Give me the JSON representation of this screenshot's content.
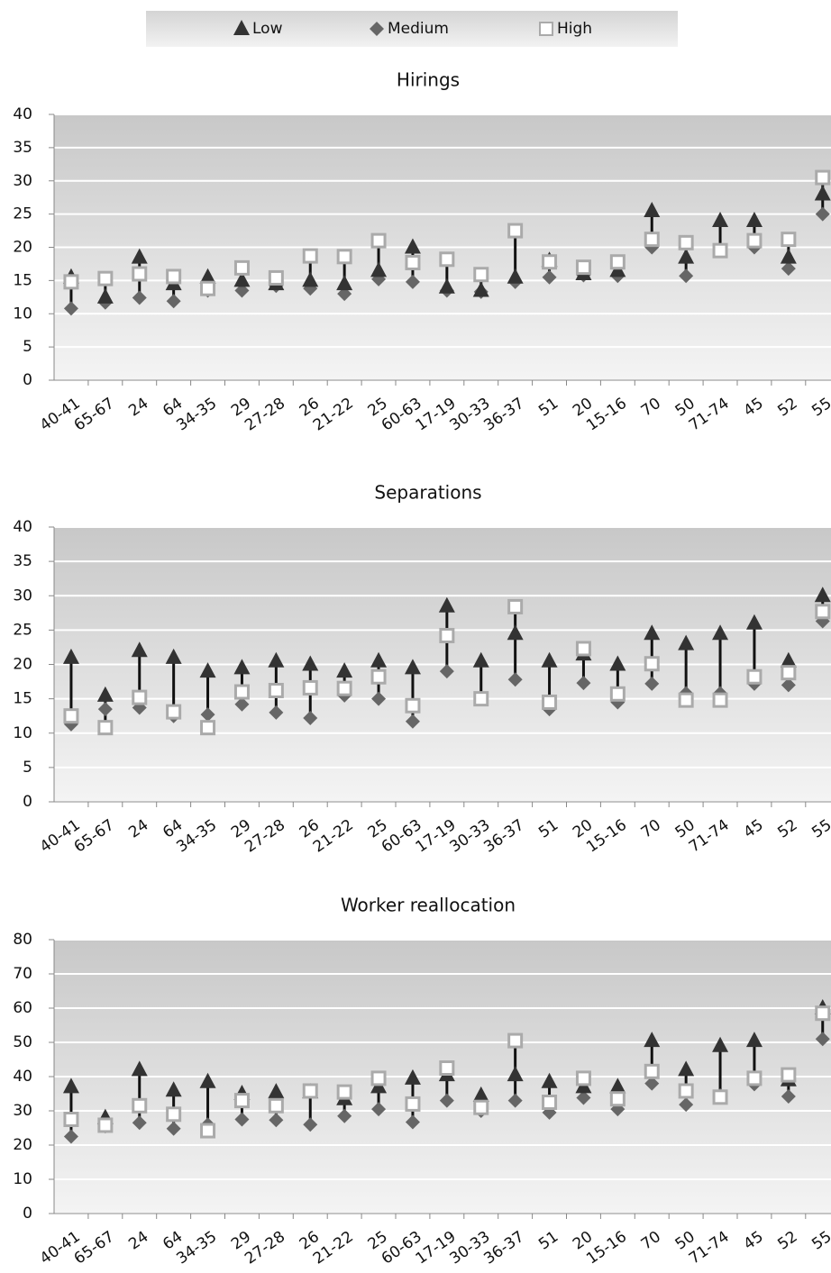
{
  "chart_data": [
    {
      "type": "range",
      "title": "Hirings",
      "categories": [
        "40-41",
        "65-67",
        "24",
        "64",
        "34-35",
        "29",
        "27-28",
        "26",
        "21-22",
        "25",
        "60-63",
        "17-19",
        "30-33",
        "36-37",
        "51",
        "20",
        "15-16",
        "70",
        "50",
        "71-74",
        "45",
        "52",
        "55"
      ],
      "series": [
        {
          "name": "Low",
          "color": "#333333",
          "marker": "triangle",
          "values": [
            15.5,
            12.5,
            18.5,
            14.5,
            15.5,
            15,
            14.5,
            15,
            14.5,
            16.5,
            20,
            14,
            13.5,
            15.5,
            18,
            16,
            16.5,
            25.5,
            18.5,
            24,
            24,
            18.5,
            28
          ]
        },
        {
          "name": "Medium",
          "color": "#666666",
          "marker": "diamond",
          "values": [
            10.8,
            11.7,
            12.4,
            11.9,
            13.5,
            13.5,
            14.2,
            13.8,
            13,
            15.2,
            14.8,
            13.5,
            13.3,
            14.8,
            15.5,
            15.8,
            15.7,
            20,
            15.7,
            19.5,
            20,
            16.8,
            25
          ]
        },
        {
          "name": "High",
          "color": "#aaaaaa",
          "marker": "square",
          "values": [
            14.8,
            15.3,
            16,
            15.6,
            13.8,
            16.9,
            15.4,
            18.7,
            18.6,
            21,
            17.7,
            18.2,
            15.9,
            22.5,
            17.8,
            17,
            17.8,
            21.2,
            20.7,
            19.5,
            21,
            21.2,
            30.5
          ]
        }
      ],
      "ylim": [
        0,
        40
      ],
      "yticks": [
        0,
        5,
        10,
        15,
        20,
        25,
        30,
        35,
        40
      ],
      "grid": true
    },
    {
      "type": "range",
      "title": "Separations",
      "categories": [
        "40-41",
        "65-67",
        "24",
        "64",
        "34-35",
        "29",
        "27-28",
        "26",
        "21-22",
        "25",
        "60-63",
        "17-19",
        "30-33",
        "36-37",
        "51",
        "20",
        "15-16",
        "70",
        "50",
        "71-74",
        "45",
        "52",
        "55"
      ],
      "series": [
        {
          "name": "Low",
          "color": "#333333",
          "marker": "triangle",
          "values": [
            21,
            15.5,
            22,
            21,
            19,
            19.5,
            20.5,
            20,
            19,
            20.5,
            19.5,
            28.5,
            20.5,
            24.5,
            20.5,
            21.5,
            20,
            24.5,
            23,
            24.5,
            26,
            20.5,
            30
          ]
        },
        {
          "name": "Medium",
          "color": "#666666",
          "marker": "diamond",
          "values": [
            11.3,
            13.5,
            13.7,
            12.5,
            12.7,
            14.2,
            13,
            12.2,
            15.5,
            15,
            11.7,
            19,
            15,
            17.8,
            13.5,
            17.3,
            14.5,
            17.2,
            15.8,
            15.8,
            17.2,
            17,
            26.3
          ]
        },
        {
          "name": "High",
          "color": "#aaaaaa",
          "marker": "square",
          "values": [
            12.5,
            10.8,
            15.2,
            13.1,
            10.8,
            16,
            16.2,
            16.6,
            16.5,
            18.2,
            14,
            24.2,
            15,
            28.4,
            14.5,
            22.3,
            15.7,
            20.1,
            14.8,
            14.8,
            18.2,
            18.8,
            27.7
          ]
        }
      ],
      "ylim": [
        0,
        40
      ],
      "yticks": [
        0,
        5,
        10,
        15,
        20,
        25,
        30,
        35,
        40
      ],
      "grid": true
    },
    {
      "type": "range",
      "title": "Worker reallocation",
      "categories": [
        "40-41",
        "65-67",
        "24",
        "64",
        "34-35",
        "29",
        "27-28",
        "26",
        "21-22",
        "25",
        "60-63",
        "17-19",
        "30-33",
        "36-37",
        "51",
        "20",
        "15-16",
        "70",
        "50",
        "71-74",
        "45",
        "52",
        "55"
      ],
      "series": [
        {
          "name": "Low",
          "color": "#333333",
          "marker": "triangle",
          "values": [
            37,
            28,
            42,
            36,
            38.5,
            35,
            35.5,
            35.5,
            33.5,
            37,
            39.5,
            40.5,
            34.5,
            40.5,
            38.5,
            37,
            37,
            50.5,
            42,
            49,
            50.5,
            39,
            60
          ]
        },
        {
          "name": "Medium",
          "color": "#666666",
          "marker": "diamond",
          "values": [
            22.5,
            25.5,
            26.5,
            24.8,
            26,
            27.5,
            27.3,
            26,
            28.5,
            30.5,
            26.7,
            33,
            30,
            33,
            29.5,
            33.8,
            30.5,
            38,
            31.8,
            34.5,
            37.8,
            34.2,
            51
          ]
        },
        {
          "name": "High",
          "color": "#aaaaaa",
          "marker": "square",
          "values": [
            27.5,
            25.8,
            31.5,
            29,
            24.2,
            33,
            31.5,
            35.8,
            35.5,
            39.5,
            32,
            42.5,
            31,
            50.5,
            32.5,
            39.5,
            33.5,
            41.5,
            35.8,
            34,
            39.5,
            40.5,
            58.5
          ]
        }
      ],
      "ylim": [
        0,
        80
      ],
      "yticks": [
        0,
        10,
        20,
        30,
        40,
        50,
        60,
        70,
        80
      ],
      "grid": true
    }
  ]
}
